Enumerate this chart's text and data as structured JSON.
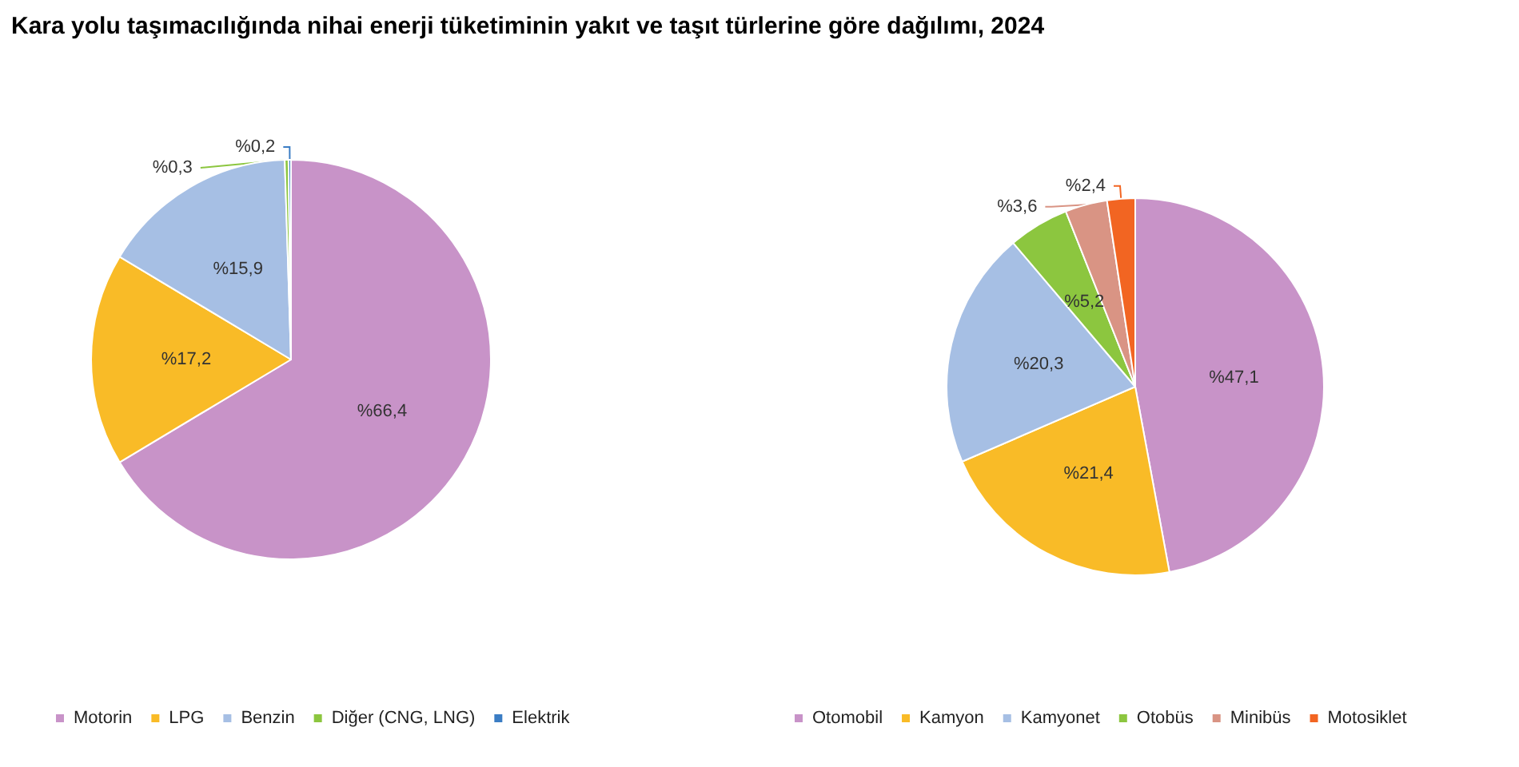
{
  "chart_data": [
    {
      "type": "pie",
      "title": "Kara yolu taşımacılığında nihai enerji tüketiminin yakıt ve taşıt türlerine göre dağılımı, 2024",
      "categories": [
        "Motorin",
        "LPG",
        "Benzin",
        "Diğer (CNG, LNG)",
        "Elektrik"
      ],
      "values": [
        66.4,
        17.2,
        15.9,
        0.3,
        0.2
      ],
      "value_labels": [
        "%66,4",
        "%17,2",
        "%15,9",
        "%0,3",
        "%0,2"
      ],
      "colors": [
        "#c893c8",
        "#f9bb27",
        "#a6bfe4",
        "#8cc63f",
        "#3b7dc4"
      ],
      "legend": "bottom"
    },
    {
      "type": "pie",
      "categories": [
        "Otomobil",
        "Kamyon",
        "Kamyonet",
        "Otobüs",
        "Minibüs",
        "Motosiklet"
      ],
      "values": [
        47.1,
        21.4,
        20.3,
        5.2,
        3.6,
        2.4
      ],
      "value_labels": [
        "%47,1",
        "%21,4",
        "%20,3",
        "%5,2",
        "%3,6",
        "%2,4"
      ],
      "colors": [
        "#c893c8",
        "#f9bb27",
        "#a6bfe4",
        "#8cc63f",
        "#d99484",
        "#f26522"
      ],
      "legend": "bottom"
    }
  ]
}
